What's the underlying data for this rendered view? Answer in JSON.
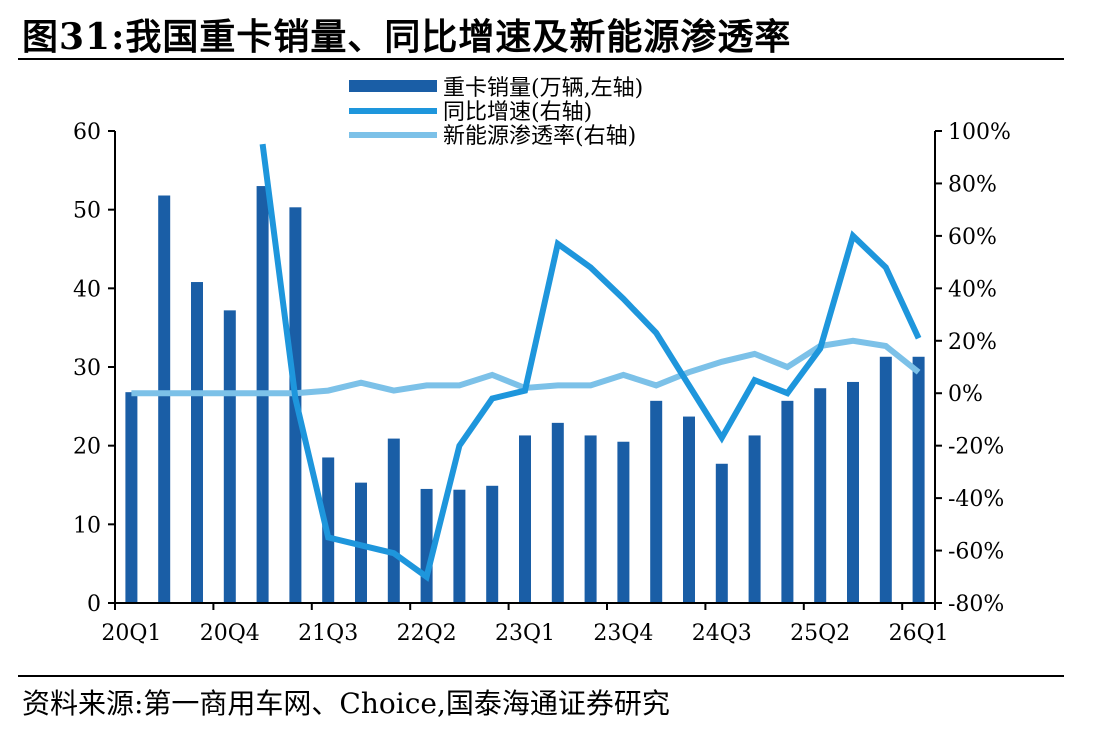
{
  "figure_title": "图31:我国重卡销量、同比增速及新能源渗透率",
  "source": "资料来源:第一商用车网、Choice,国泰海通证券研究",
  "colors": {
    "bar": "#1a5ea6",
    "yoy_line": "#1e96dc",
    "nev_line": "#7cc1e8",
    "axis": "#000000"
  },
  "chart_data": {
    "type": "bar+line",
    "title": "",
    "xlabel": "",
    "ylabel_left": "",
    "ylabel_right": "",
    "categories": [
      "20Q1",
      "20Q2",
      "20Q3",
      "20Q4",
      "21Q1",
      "21Q2",
      "21Q3",
      "21Q4",
      "22Q1",
      "22Q2",
      "22Q3",
      "22Q4",
      "23Q1",
      "23Q2",
      "23Q3",
      "23Q4",
      "24Q1",
      "24Q2",
      "24Q3",
      "24Q4",
      "25Q1",
      "25Q2",
      "25Q3",
      "25Q4",
      "26Q1"
    ],
    "x_tick_labels": [
      "20Q1",
      "20Q4",
      "21Q3",
      "22Q2",
      "23Q1",
      "23Q4",
      "24Q3",
      "25Q2",
      "26Q1"
    ],
    "x_tick_indices": [
      0,
      3,
      6,
      9,
      12,
      15,
      18,
      21,
      24
    ],
    "y_left": {
      "min": 0,
      "max": 60,
      "ticks": [
        0,
        10,
        20,
        30,
        40,
        50,
        60
      ],
      "tick_labels": [
        "0",
        "10",
        "20",
        "30",
        "40",
        "50",
        "60"
      ]
    },
    "y_right": {
      "min": -80,
      "max": 100,
      "ticks": [
        -80,
        -60,
        -40,
        -20,
        0,
        20,
        40,
        60,
        80,
        100
      ],
      "tick_labels": [
        "-80%",
        "-60%",
        "-40%",
        "-20%",
        "0%",
        "20%",
        "40%",
        "60%",
        "80%",
        "100%"
      ]
    },
    "series": [
      {
        "name": "重卡销量(万辆,左轴)",
        "kind": "bar",
        "axis": "left",
        "values": [
          26.8,
          51.8,
          40.8,
          37.2,
          53.0,
          50.3,
          18.5,
          15.3,
          20.9,
          14.5,
          14.4,
          14.9,
          21.3,
          22.9,
          21.3,
          20.5,
          25.7,
          23.7,
          17.7,
          21.3,
          25.7,
          27.3,
          28.1,
          31.3,
          31.3
        ]
      },
      {
        "name": "同比增速(右轴)",
        "kind": "line",
        "axis": "right",
        "values": [
          null,
          null,
          null,
          null,
          95,
          -2,
          -55,
          -58,
          -61,
          -70,
          -20,
          -2,
          1,
          57,
          48,
          36,
          23,
          3,
          -17,
          5,
          0,
          17,
          60,
          48,
          21
        ]
      },
      {
        "name": "新能源渗透率(右轴)",
        "kind": "line",
        "axis": "right",
        "values": [
          0,
          0,
          0,
          0,
          0,
          0,
          1,
          4,
          1,
          3,
          3,
          7,
          2,
          3,
          3,
          7,
          3,
          8,
          12,
          15,
          10,
          18,
          20,
          18,
          8
        ]
      }
    ],
    "legend_position": "top-center",
    "grid": false
  }
}
